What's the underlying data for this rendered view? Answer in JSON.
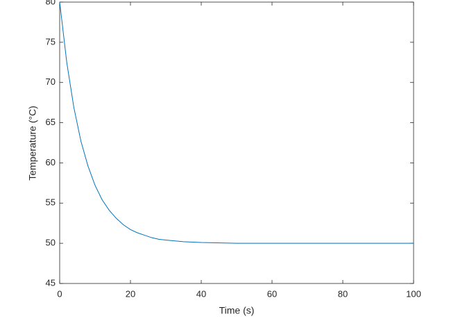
{
  "chart_data": {
    "type": "line",
    "xlabel": "Time (s)",
    "ylabel": "Temperature (°C)",
    "x": [
      0,
      2,
      4,
      6,
      8,
      10,
      12,
      14,
      16,
      18,
      20,
      22,
      24,
      26,
      28,
      30,
      35,
      40,
      50,
      60,
      70,
      80,
      90,
      100
    ],
    "series": [
      {
        "color": "#0072bd",
        "values": [
          80,
          72.5,
          66.9,
          62.7,
          59.6,
          57.2,
          55.4,
          54.1,
          53.1,
          52.3,
          51.7,
          51.3,
          51.0,
          50.7,
          50.5,
          50.4,
          50.2,
          50.1,
          50.0,
          50.0,
          50.0,
          50.0,
          50.0,
          50.0
        ]
      }
    ],
    "xlim": [
      0,
      100
    ],
    "xticks": [
      0,
      20,
      40,
      60,
      80,
      100
    ],
    "ylim": [
      45,
      80
    ],
    "yticks": [
      45,
      50,
      55,
      60,
      65,
      70,
      75,
      80
    ]
  }
}
